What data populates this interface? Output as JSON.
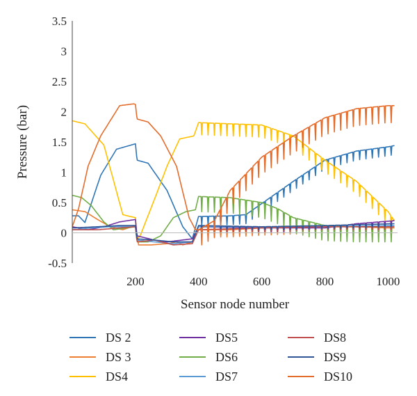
{
  "chart_data": {
    "type": "line",
    "title": "",
    "xlabel": "Sensor node number",
    "ylabel": "Pressure (bar)",
    "xlim": [
      0,
      1030
    ],
    "ylim": [
      -0.5,
      3.5
    ],
    "xticks": [
      200,
      400,
      600,
      800,
      1000
    ],
    "yticks": [
      -0.5,
      0,
      0.5,
      1,
      1.5,
      2,
      2.5,
      3,
      3.5
    ],
    "ytick_labels": [
      "-0.5",
      "0",
      "0.5",
      "1",
      "1.5",
      "2",
      "2.5",
      "3",
      "3.5"
    ],
    "grid": false,
    "legend_position": "bottom",
    "series": [
      {
        "name": "DS 2",
        "color": "#2e75b6",
        "sawtooth": 0.15,
        "x": [
          0,
          20,
          40,
          90,
          140,
          200,
          205,
          240,
          300,
          350,
          380,
          400,
          500,
          550,
          700,
          800,
          900,
          1000,
          1020
        ],
        "y": [
          0.28,
          0.28,
          0.17,
          0.95,
          1.38,
          1.47,
          1.2,
          1.15,
          0.7,
          0.1,
          -0.1,
          0.27,
          0.28,
          0.3,
          0.85,
          1.2,
          1.35,
          1.42,
          1.44
        ]
      },
      {
        "name": "DS 3",
        "color": "#ed7d31",
        "sawtooth": 0.12,
        "x": [
          0,
          40,
          80,
          120,
          160,
          200,
          210,
          250,
          300,
          330,
          350,
          380,
          400,
          500,
          600,
          700,
          800,
          900,
          1000,
          1020
        ],
        "y": [
          0.38,
          0.35,
          0.22,
          0.1,
          0.05,
          0.12,
          -0.2,
          -0.2,
          -0.18,
          -0.15,
          -0.2,
          -0.15,
          0.05,
          0.05,
          0.08,
          0.1,
          0.1,
          0.1,
          0.08,
          0.08
        ]
      },
      {
        "name": "DS4",
        "color": "#ffc000",
        "sawtooth": 0.2,
        "x": [
          0,
          40,
          100,
          160,
          175,
          200,
          205,
          215,
          260,
          300,
          340,
          385,
          400,
          500,
          600,
          700,
          800,
          900,
          1000,
          1020
        ],
        "y": [
          1.85,
          1.8,
          1.45,
          0.3,
          0.28,
          0.25,
          -0.1,
          -0.05,
          0.55,
          1.1,
          1.55,
          1.6,
          1.82,
          1.8,
          1.78,
          1.6,
          1.2,
          0.85,
          0.35,
          0.2
        ]
      },
      {
        "name": "DS5",
        "color": "#7030a0",
        "sawtooth": 0.06,
        "x": [
          0,
          50,
          100,
          150,
          200,
          205,
          260,
          300,
          380,
          400,
          600,
          800,
          900,
          1020
        ],
        "y": [
          0.1,
          0.05,
          0.1,
          0.18,
          0.22,
          -0.05,
          -0.12,
          -0.15,
          -0.1,
          0.1,
          0.08,
          0.08,
          0.15,
          0.2
        ]
      },
      {
        "name": "DS6",
        "color": "#70ad47",
        "sawtooth": 0.25,
        "x": [
          0,
          30,
          60,
          100,
          130,
          200,
          205,
          240,
          280,
          320,
          360,
          390,
          400,
          500,
          600,
          650,
          700,
          800,
          900,
          1020
        ],
        "y": [
          0.62,
          0.58,
          0.45,
          0.18,
          0.05,
          0.1,
          -0.15,
          -0.15,
          -0.05,
          0.25,
          0.35,
          0.38,
          0.6,
          0.58,
          0.5,
          0.4,
          0.25,
          0.12,
          0.1,
          0.1
        ]
      },
      {
        "name": "DS7",
        "color": "#5b9bd5",
        "sawtooth": 0.05,
        "x": [
          0,
          60,
          120,
          200,
          205,
          260,
          320,
          380,
          400,
          600,
          800,
          1020
        ],
        "y": [
          0.05,
          0.08,
          0.1,
          0.1,
          -0.12,
          -0.15,
          -0.18,
          -0.15,
          0.1,
          0.1,
          0.1,
          0.12
        ]
      },
      {
        "name": "DS8",
        "color": "#c0504d",
        "sawtooth": 0.05,
        "x": [
          0,
          80,
          150,
          200,
          205,
          260,
          320,
          380,
          400,
          600,
          800,
          1020
        ],
        "y": [
          0.05,
          0.05,
          0.08,
          0.1,
          -0.15,
          -0.12,
          -0.2,
          -0.18,
          0.05,
          0.08,
          0.1,
          0.1
        ]
      },
      {
        "name": "DS9",
        "color": "#2f5597",
        "sawtooth": 0.05,
        "x": [
          0,
          80,
          150,
          200,
          205,
          260,
          320,
          380,
          400,
          600,
          800,
          1020
        ],
        "y": [
          0.08,
          0.1,
          0.12,
          0.12,
          -0.1,
          -0.12,
          -0.15,
          -0.15,
          0.12,
          0.1,
          0.12,
          0.15
        ]
      },
      {
        "name": "DS10",
        "color": "#e46c2b",
        "sawtooth": 0.28,
        "x": [
          0,
          20,
          50,
          90,
          150,
          195,
          200,
          205,
          240,
          280,
          330,
          370,
          390,
          400,
          450,
          500,
          600,
          700,
          800,
          900,
          1000,
          1020
        ],
        "y": [
          0.1,
          0.4,
          1.1,
          1.6,
          2.1,
          2.13,
          2.12,
          1.88,
          1.83,
          1.6,
          1.1,
          0.25,
          0.05,
          0.05,
          0.2,
          0.7,
          1.25,
          1.6,
          1.9,
          2.05,
          2.1,
          2.1
        ]
      }
    ]
  }
}
